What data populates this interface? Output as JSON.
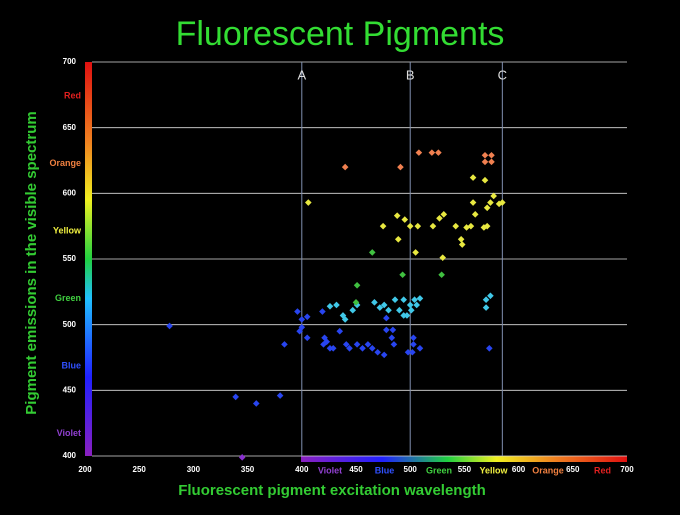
{
  "chart_data": {
    "type": "scatter",
    "title": "Fluorescent Pigments",
    "x_label": "Fluorescent pigment excitation wavelength",
    "y_label": "Pigment emissions in the  visible spectrum",
    "xlim": [
      200,
      700
    ],
    "ylim": [
      400,
      700
    ],
    "xticks": [
      200,
      250,
      300,
      350,
      400,
      450,
      500,
      550,
      600,
      650,
      700
    ],
    "yticks": [
      400,
      450,
      500,
      550,
      600,
      650,
      700
    ],
    "grid": true,
    "reference_lines": [
      {
        "label": "A",
        "x": 400
      },
      {
        "label": "B",
        "x": 500
      },
      {
        "label": "C",
        "x": 585
      }
    ],
    "y_spectrum_labels": [
      {
        "label": "Red",
        "color": "#e02020"
      },
      {
        "label": "Orange",
        "color": "#f08040"
      },
      {
        "label": "Yellow",
        "color": "#f0f040"
      },
      {
        "label": "Green",
        "color": "#40d040"
      },
      {
        "label": "Blue",
        "color": "#3050ff"
      },
      {
        "label": "Violet",
        "color": "#9040d0"
      }
    ],
    "x_spectrum_labels": [
      {
        "label": "Violet",
        "color": "#9040d0"
      },
      {
        "label": "Blue",
        "color": "#3050ff"
      },
      {
        "label": "Green",
        "color": "#40d040"
      },
      {
        "label": "Yellow",
        "color": "#f0f040"
      },
      {
        "label": "Orange",
        "color": "#f08040"
      },
      {
        "label": "Red",
        "color": "#e02020"
      }
    ],
    "series": [
      {
        "color": "#8a30d0",
        "x": [
          345
        ],
        "y": [
          399
        ]
      },
      {
        "color": "#2845f0",
        "x": [
          278,
          339,
          358,
          380,
          384,
          396,
          400,
          405,
          400,
          398,
          405,
          419,
          435,
          421,
          423,
          426,
          420,
          429,
          441,
          444,
          451,
          456,
          461,
          465,
          470,
          476,
          478,
          478,
          484,
          483,
          485,
          503,
          503,
          509,
          498,
          502,
          573
        ],
        "y": [
          499,
          445,
          440,
          446,
          485,
          510,
          504,
          506,
          498,
          495,
          490,
          510,
          495,
          490,
          487,
          482,
          485,
          482,
          485,
          482,
          485,
          482,
          485,
          482,
          479,
          477,
          496,
          505,
          496,
          490,
          485,
          490,
          485,
          482,
          479,
          479,
          482
        ]
      },
      {
        "color": "#40c8e8",
        "x": [
          426,
          432,
          438,
          440,
          447,
          451,
          467,
          472,
          476,
          480,
          486,
          490,
          494,
          500,
          501,
          504,
          506,
          509,
          497,
          494,
          570,
          574,
          570
        ],
        "y": [
          514,
          515,
          507,
          504,
          511,
          515,
          517,
          513,
          515,
          511,
          519,
          511,
          519,
          515,
          511,
          519,
          515,
          520,
          507,
          507,
          519,
          522,
          513
        ]
      },
      {
        "color": "#40c040",
        "x": [
          465,
          493,
          529,
          451,
          450
        ],
        "y": [
          555,
          538,
          538,
          530,
          517
        ]
      },
      {
        "color": "#e8e840",
        "x": [
          406,
          488,
          495,
          475,
          500,
          507,
          521,
          527,
          531,
          542,
          552,
          556,
          558,
          560,
          568,
          571,
          574,
          571,
          577,
          582,
          585,
          489,
          547,
          548,
          530,
          505,
          569,
          558
        ],
        "y": [
          593,
          583,
          580,
          575,
          575,
          575,
          575,
          581,
          584,
          575,
          574,
          575,
          593,
          584,
          574,
          575,
          593,
          589,
          598,
          592,
          593,
          565,
          565,
          561,
          551,
          555,
          610,
          612
        ]
      },
      {
        "color": "#f08050",
        "x": [
          440,
          491,
          508,
          520,
          526,
          569,
          575,
          569,
          575
        ],
        "y": [
          620,
          620,
          631,
          631,
          631,
          629,
          629,
          624,
          624
        ]
      }
    ]
  }
}
